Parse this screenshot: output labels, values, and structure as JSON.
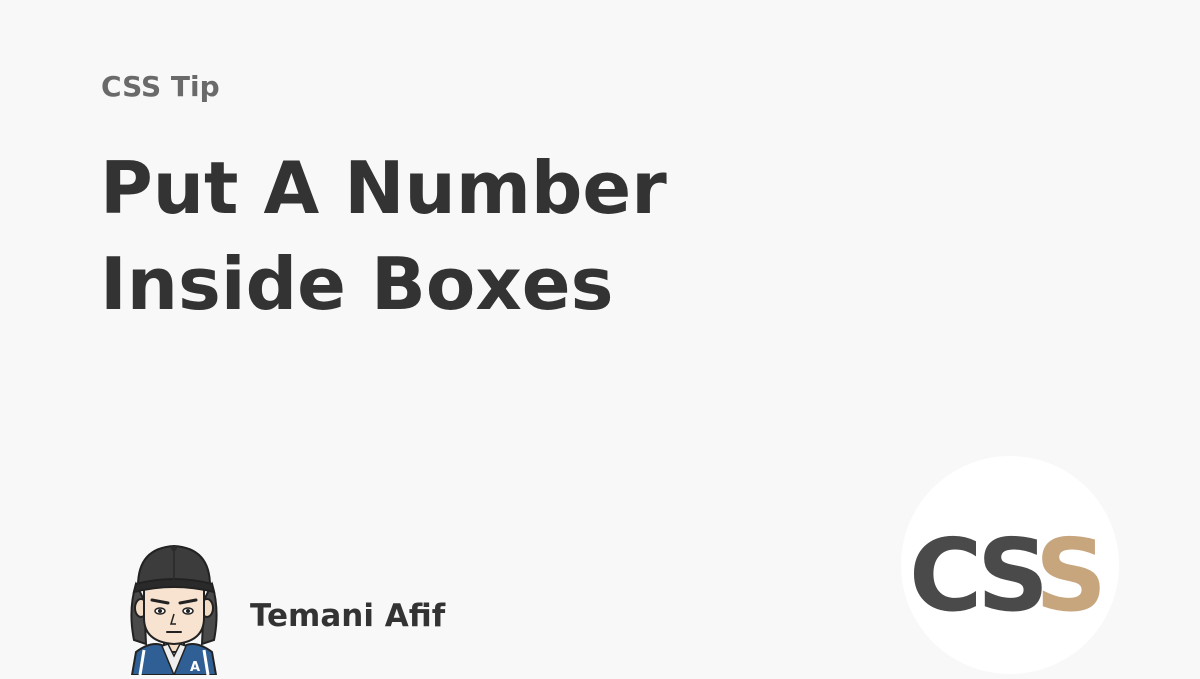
{
  "header": {
    "kicker": "CSS Tip"
  },
  "title": {
    "line1": "Put A Number",
    "line2": "Inside Boxes"
  },
  "author": {
    "name": "Temani Afif",
    "avatar_icon": "avatar-illustration",
    "jacket_letter": "A"
  },
  "logo": {
    "letters": [
      "C",
      "S",
      "S"
    ],
    "icon": "css-logo-icon",
    "colors": {
      "dark": "#4a4a4a",
      "accent": "#c7a57d"
    }
  },
  "colors": {
    "background": "#f8f8f8",
    "title": "#333333",
    "kicker": "#6a6a6a"
  }
}
